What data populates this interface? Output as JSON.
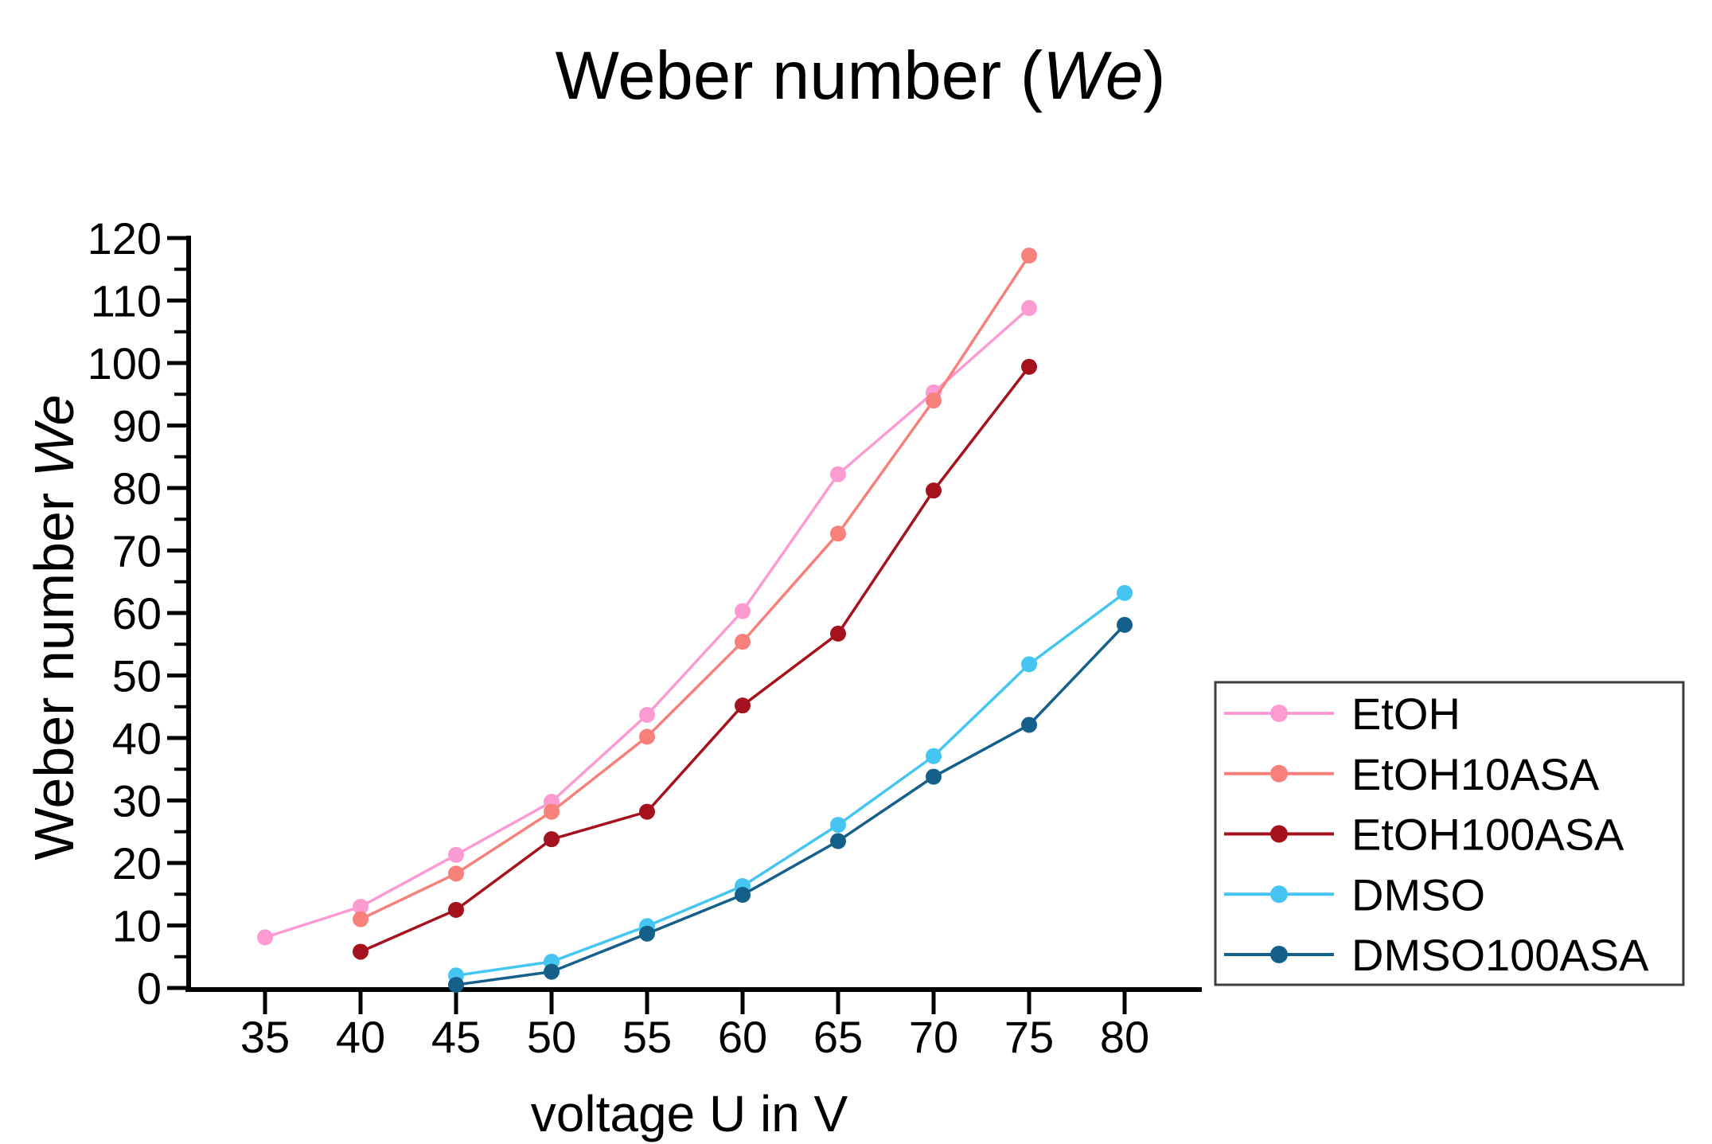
{
  "figure": {
    "background": "#ffffff",
    "axis_color": "#000000",
    "legend_border_color": "#3d3d3d"
  },
  "chart_data": {
    "type": "line",
    "title": {
      "prefix": "Weber number (",
      "italic": "We",
      "suffix": ")",
      "full": "Weber number (We)"
    },
    "xlabel": "voltage U in V",
    "ylabel": {
      "prefix": "Weber number ",
      "italic": "We",
      "full": "Weber number We"
    },
    "x_axis": {
      "ticks": [
        35,
        40,
        45,
        50,
        55,
        60,
        65,
        70,
        75,
        80
      ],
      "lim": [
        31,
        84
      ],
      "minor_ticks": false
    },
    "y_axis": {
      "ticks": [
        0,
        10,
        20,
        30,
        40,
        50,
        60,
        70,
        80,
        90,
        100,
        110,
        120
      ],
      "lim": [
        0,
        120
      ],
      "minor_step": 5
    },
    "grid": false,
    "legend_position": "right-outside",
    "series": [
      {
        "name": "EtOH",
        "color": "#fc9bd2",
        "x": [
          35,
          40,
          45,
          50,
          55,
          60,
          65,
          70,
          75
        ],
        "y": [
          8.1,
          13.0,
          21.3,
          29.8,
          43.7,
          60.3,
          82.2,
          95.3,
          108.8
        ]
      },
      {
        "name": "EtOH10ASA",
        "color": "#f8807a",
        "x": [
          40,
          45,
          50,
          55,
          60,
          65,
          70,
          75
        ],
        "y": [
          11.0,
          18.3,
          28.2,
          40.2,
          55.4,
          72.7,
          94.0,
          117.2
        ]
      },
      {
        "name": "EtOH100ASA",
        "color": "#a5121e",
        "x": [
          40,
          45,
          50,
          55,
          60,
          65,
          70,
          75
        ],
        "y": [
          5.8,
          12.5,
          23.8,
          28.2,
          45.2,
          56.7,
          79.6,
          99.4
        ]
      },
      {
        "name": "DMSO",
        "color": "#45c6f2",
        "x": [
          45,
          50,
          55,
          60,
          65,
          70,
          75,
          80
        ],
        "y": [
          2.0,
          4.2,
          9.9,
          16.3,
          26.1,
          37.1,
          51.8,
          63.2
        ]
      },
      {
        "name": "DMSO100ASA",
        "color": "#15608a",
        "x": [
          45,
          50,
          55,
          60,
          65,
          70,
          75,
          80
        ],
        "y": [
          0.5,
          2.6,
          8.7,
          14.9,
          23.5,
          33.8,
          42.1,
          58.1
        ]
      }
    ]
  }
}
